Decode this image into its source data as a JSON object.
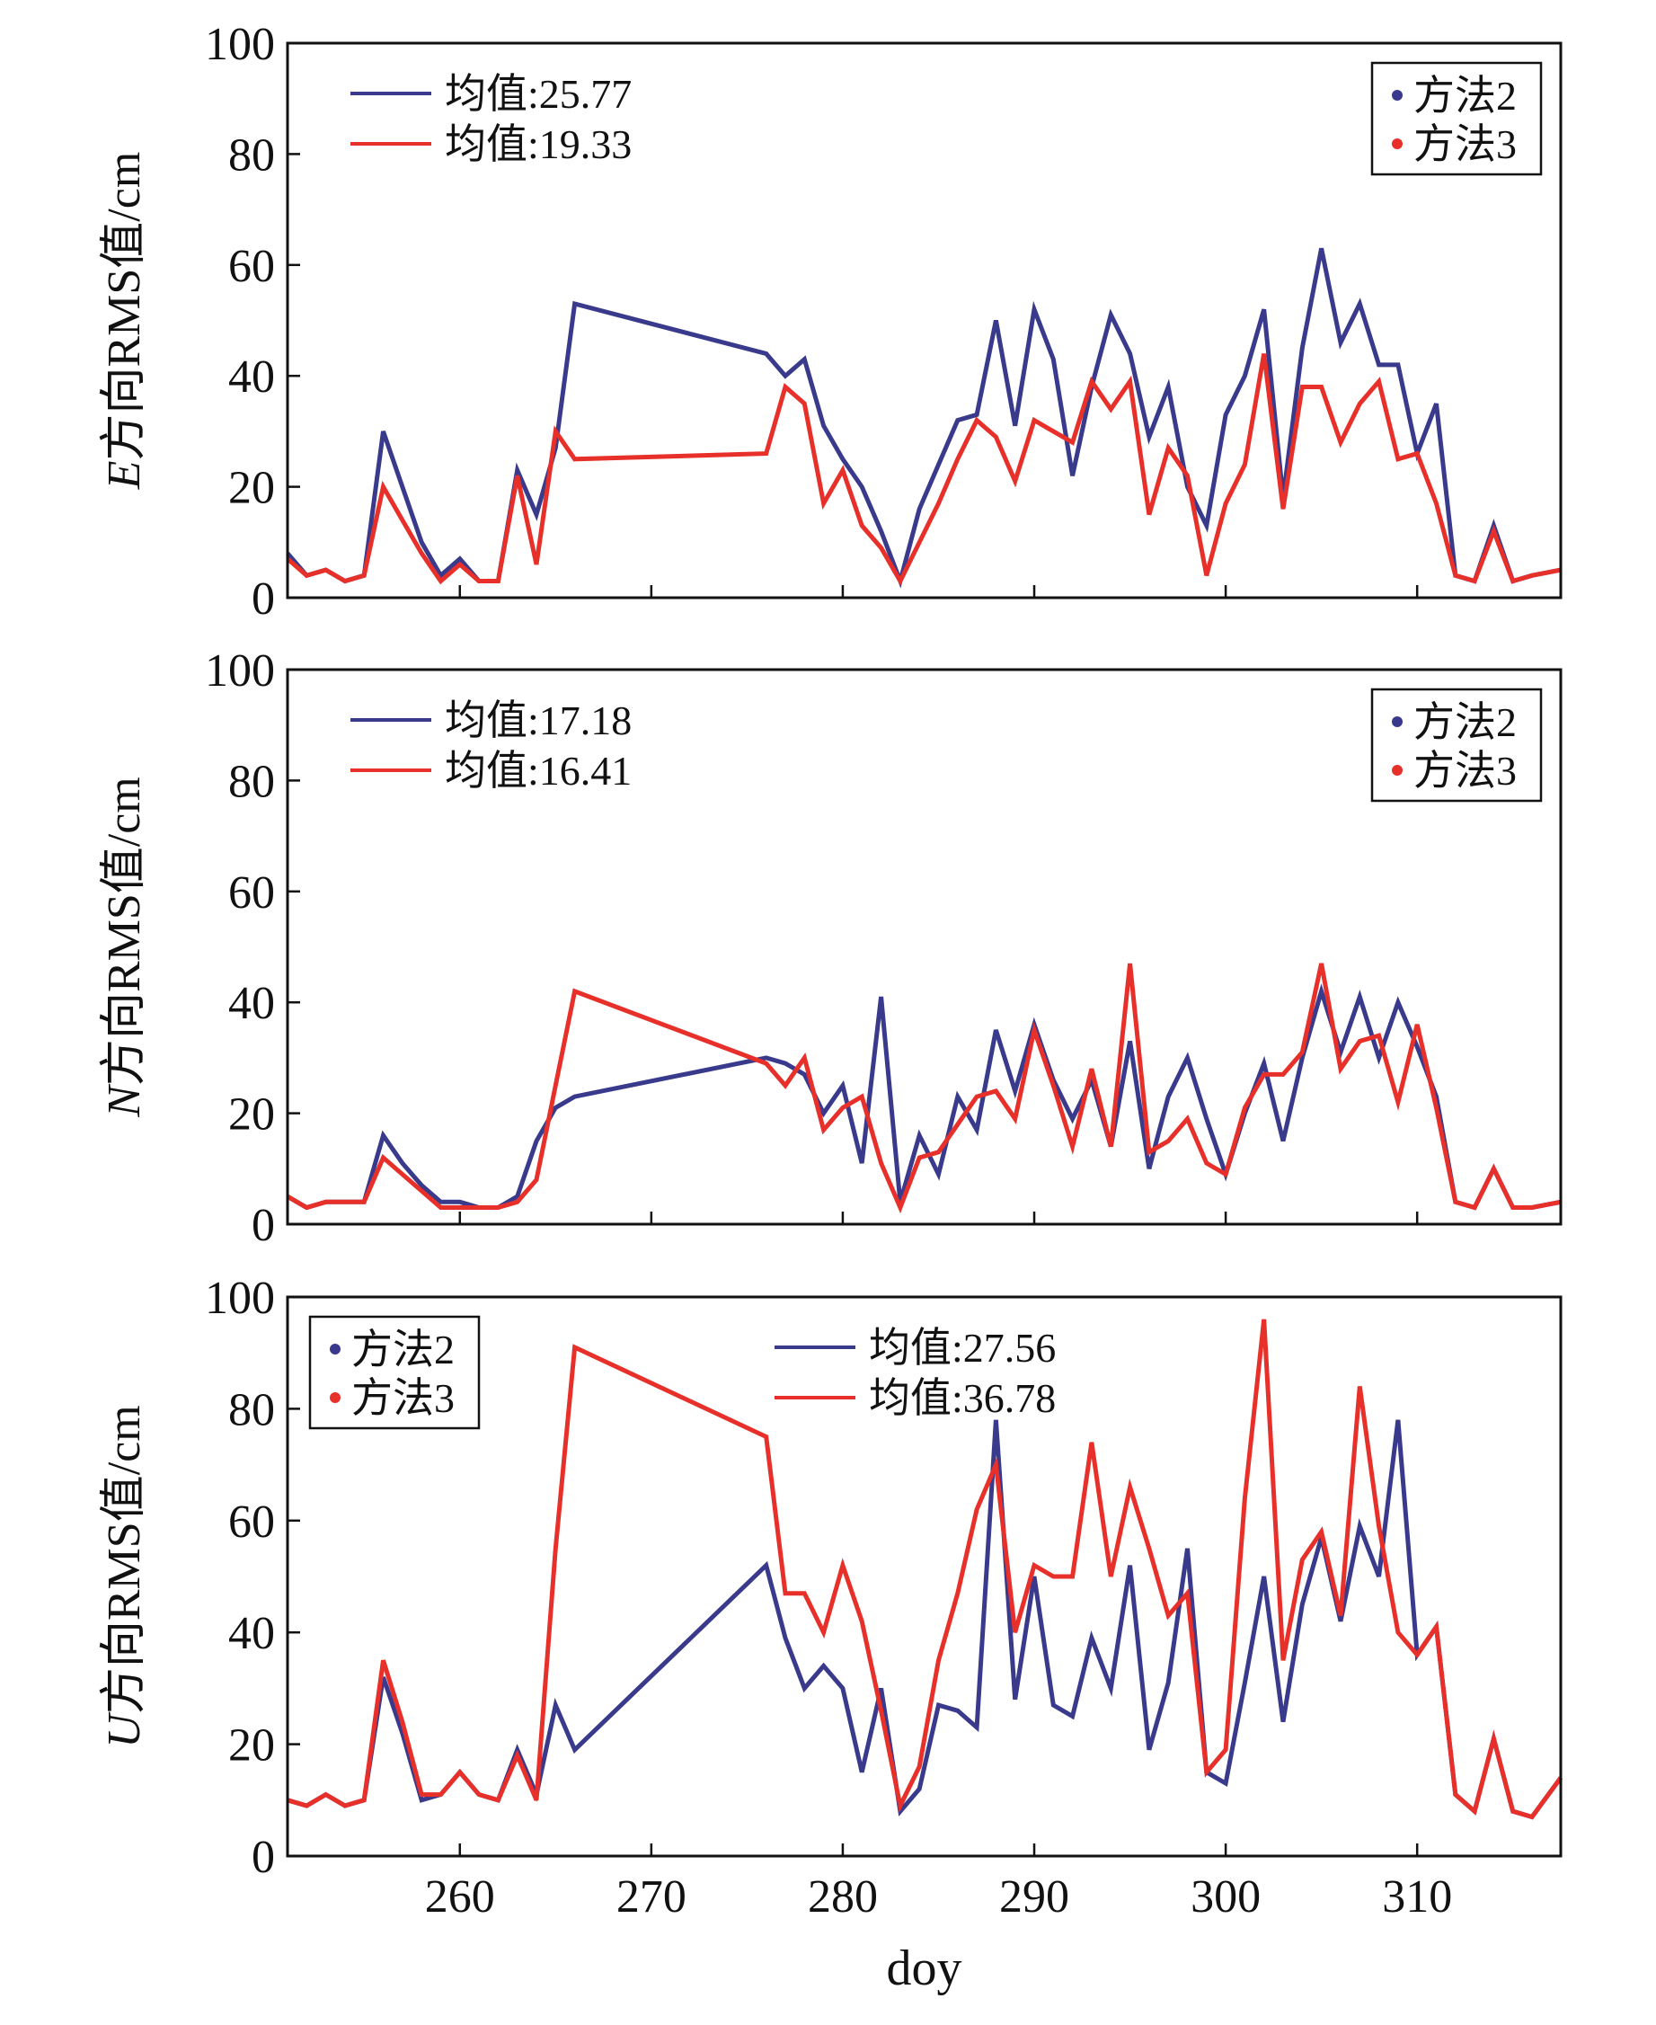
{
  "figure": {
    "xlabel": "doy"
  },
  "colors": {
    "method2": "#3a3a8c",
    "method3": "#e8302a",
    "axis": "#111111"
  },
  "chart_data": [
    {
      "type": "line",
      "id": "E",
      "ylabel_italic": "E",
      "ylabel_rest": "方向RMS值/cm",
      "xlim": [
        251,
        317.5
      ],
      "ylim": [
        0,
        100
      ],
      "xticks": [
        260,
        270,
        280,
        290,
        300,
        310
      ],
      "yticks": [
        0,
        20,
        40,
        60,
        80,
        100
      ],
      "mean_labels": [
        "均值:25.77",
        "均值:19.33"
      ],
      "legend": [
        "方法2",
        "方法3"
      ],
      "series": [
        {
          "name": "方法2",
          "x": [
            251,
            252,
            253,
            254,
            255,
            256,
            257,
            258,
            259,
            260,
            261,
            262,
            263,
            264,
            265,
            266,
            276,
            277,
            278,
            279,
            280,
            281,
            282,
            283,
            284,
            285,
            286,
            287,
            288,
            289,
            290,
            291,
            292,
            293,
            294,
            295,
            296,
            297,
            298,
            299,
            300,
            301,
            302,
            303,
            304,
            305,
            306,
            307,
            308,
            309,
            310,
            311,
            312,
            313,
            314,
            315,
            316,
            317.5
          ],
          "values": [
            8,
            4,
            5,
            3,
            4,
            30,
            20,
            10,
            4,
            7,
            3,
            3,
            23,
            15,
            27,
            53,
            44,
            40,
            43,
            31,
            25,
            20,
            12,
            3,
            16,
            24,
            32,
            33,
            50,
            31,
            52,
            43,
            22,
            38,
            51,
            44,
            29,
            38,
            20,
            13,
            33,
            40,
            52,
            18,
            45,
            63,
            46,
            53,
            42,
            42,
            26,
            35,
            4,
            3,
            13,
            3,
            4,
            5
          ]
        },
        {
          "name": "方法3",
          "x": [
            251,
            252,
            253,
            254,
            255,
            256,
            257,
            258,
            259,
            260,
            261,
            262,
            263,
            264,
            265,
            266,
            276,
            277,
            278,
            279,
            280,
            281,
            282,
            283,
            284,
            285,
            286,
            287,
            288,
            289,
            290,
            291,
            292,
            293,
            294,
            295,
            296,
            297,
            298,
            299,
            300,
            301,
            302,
            303,
            304,
            305,
            306,
            307,
            308,
            309,
            310,
            311,
            312,
            313,
            314,
            315,
            316,
            317.5
          ],
          "values": [
            7,
            4,
            5,
            3,
            4,
            20,
            14,
            8,
            3,
            6,
            3,
            3,
            22,
            6,
            30,
            25,
            26,
            38,
            35,
            17,
            23,
            13,
            9,
            3,
            10,
            17,
            25,
            32,
            29,
            21,
            32,
            30,
            28,
            39,
            34,
            39,
            15,
            27,
            22,
            4,
            17,
            24,
            44,
            16,
            38,
            38,
            28,
            35,
            39,
            25,
            26,
            17,
            4,
            3,
            12,
            3,
            4,
            5
          ]
        }
      ]
    },
    {
      "type": "line",
      "id": "N",
      "ylabel_italic": "N",
      "ylabel_rest": "方向RMS值/cm",
      "xlim": [
        251,
        317.5
      ],
      "ylim": [
        0,
        100
      ],
      "xticks": [
        260,
        270,
        280,
        290,
        300,
        310
      ],
      "yticks": [
        0,
        20,
        40,
        60,
        80,
        100
      ],
      "mean_labels": [
        "均值:17.18",
        "均值:16.41"
      ],
      "legend": [
        "方法2",
        "方法3"
      ],
      "series": [
        {
          "name": "方法2",
          "x": [
            251,
            252,
            253,
            254,
            255,
            256,
            257,
            258,
            259,
            260,
            261,
            262,
            263,
            264,
            265,
            266,
            276,
            277,
            278,
            279,
            280,
            281,
            282,
            283,
            284,
            285,
            286,
            287,
            288,
            289,
            290,
            291,
            292,
            293,
            294,
            295,
            296,
            297,
            298,
            299,
            300,
            301,
            302,
            303,
            304,
            305,
            306,
            307,
            308,
            309,
            310,
            311,
            312,
            313,
            314,
            315,
            316,
            317.5
          ],
          "values": [
            5,
            3,
            4,
            4,
            4,
            16,
            11,
            7,
            4,
            4,
            3,
            3,
            5,
            15,
            21,
            23,
            30,
            29,
            27,
            20,
            25,
            11,
            41,
            4,
            16,
            9,
            23,
            17,
            35,
            24,
            36,
            26,
            19,
            26,
            14,
            33,
            10,
            23,
            30,
            19,
            9,
            20,
            29,
            15,
            30,
            42,
            31,
            41,
            30,
            40,
            32,
            23,
            4,
            3,
            10,
            3,
            3,
            4
          ]
        },
        {
          "name": "方法3",
          "x": [
            251,
            252,
            253,
            254,
            255,
            256,
            257,
            258,
            259,
            260,
            261,
            262,
            263,
            264,
            265,
            266,
            276,
            277,
            278,
            279,
            280,
            281,
            282,
            283,
            284,
            285,
            286,
            287,
            288,
            289,
            290,
            291,
            292,
            293,
            294,
            295,
            296,
            297,
            298,
            299,
            300,
            301,
            302,
            303,
            304,
            305,
            306,
            307,
            308,
            309,
            310,
            311,
            312,
            313,
            314,
            315,
            316,
            317.5
          ],
          "values": [
            5,
            3,
            4,
            4,
            4,
            12,
            9,
            6,
            3,
            3,
            3,
            3,
            4,
            8,
            25,
            42,
            29,
            25,
            30,
            17,
            21,
            23,
            11,
            3,
            12,
            13,
            18,
            23,
            24,
            19,
            35,
            25,
            14,
            28,
            14,
            47,
            13,
            15,
            19,
            11,
            9,
            21,
            27,
            27,
            31,
            47,
            28,
            33,
            34,
            22,
            36,
            21,
            4,
            3,
            10,
            3,
            3,
            4
          ]
        }
      ]
    },
    {
      "type": "line",
      "id": "U",
      "ylabel_italic": "U",
      "ylabel_rest": "方向RMS值/cm",
      "xlim": [
        251,
        317.5
      ],
      "ylim": [
        0,
        100
      ],
      "xticks": [
        260,
        270,
        280,
        290,
        300,
        310
      ],
      "yticks": [
        0,
        20,
        40,
        60,
        80,
        100
      ],
      "mean_labels": [
        "均值:27.56",
        "均值:36.78"
      ],
      "legend": [
        "方法2",
        "方法3"
      ],
      "series": [
        {
          "name": "方法2",
          "x": [
            251,
            252,
            253,
            254,
            255,
            256,
            257,
            258,
            259,
            260,
            261,
            262,
            263,
            264,
            265,
            266,
            276,
            277,
            278,
            279,
            280,
            281,
            282,
            283,
            284,
            285,
            286,
            287,
            288,
            289,
            290,
            291,
            292,
            293,
            294,
            295,
            296,
            297,
            298,
            299,
            300,
            301,
            302,
            303,
            304,
            305,
            306,
            307,
            308,
            309,
            310,
            311,
            312,
            313,
            314,
            315,
            316,
            317.5
          ],
          "values": [
            10,
            9,
            11,
            9,
            10,
            32,
            22,
            10,
            11,
            15,
            11,
            10,
            19,
            11,
            27,
            19,
            52,
            39,
            30,
            34,
            30,
            15,
            30,
            8,
            12,
            27,
            26,
            23,
            78,
            28,
            50,
            27,
            25,
            39,
            30,
            52,
            19,
            31,
            55,
            15,
            13,
            31,
            50,
            24,
            45,
            57,
            42,
            59,
            50,
            78,
            36,
            41,
            11,
            8,
            21,
            8,
            7,
            14
          ]
        },
        {
          "name": "方法3",
          "x": [
            251,
            252,
            253,
            254,
            255,
            256,
            257,
            258,
            259,
            260,
            261,
            262,
            263,
            264,
            265,
            266,
            276,
            277,
            278,
            279,
            280,
            281,
            282,
            283,
            284,
            285,
            286,
            287,
            288,
            289,
            290,
            291,
            292,
            293,
            294,
            295,
            296,
            297,
            298,
            299,
            300,
            301,
            302,
            303,
            304,
            305,
            306,
            307,
            308,
            309,
            310,
            311,
            312,
            313,
            314,
            315,
            316,
            317.5
          ],
          "values": [
            10,
            9,
            11,
            9,
            10,
            35,
            24,
            11,
            11,
            15,
            11,
            10,
            18,
            10,
            55,
            91,
            75,
            47,
            47,
            40,
            52,
            42,
            26,
            9,
            16,
            35,
            47,
            62,
            70,
            40,
            52,
            50,
            50,
            74,
            50,
            66,
            55,
            43,
            47,
            15,
            19,
            64,
            96,
            35,
            53,
            58,
            43,
            84,
            59,
            40,
            36,
            41,
            11,
            8,
            21,
            8,
            7,
            14
          ]
        }
      ]
    }
  ]
}
